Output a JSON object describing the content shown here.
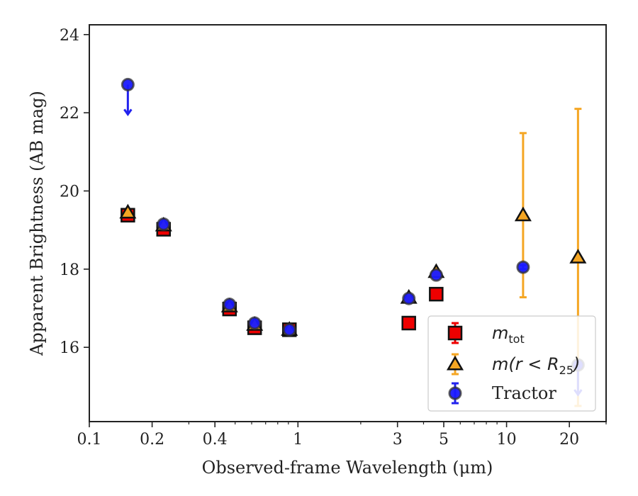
{
  "chart_data": {
    "type": "scatter",
    "xlabel": "Observed-frame Wavelength (μm)",
    "ylabel": "Apparent Brightness (AB mag)",
    "xscale": "log",
    "xlim": [
      0.1,
      30
    ],
    "ylim": [
      24.25,
      14.1
    ],
    "y_inverted": true,
    "xticks": [
      {
        "value": 0.1,
        "label": "0.1"
      },
      {
        "value": 0.2,
        "label": "0.2"
      },
      {
        "value": 0.4,
        "label": "0.4"
      },
      {
        "value": 1,
        "label": "1"
      },
      {
        "value": 3,
        "label": "3"
      },
      {
        "value": 5,
        "label": "5"
      },
      {
        "value": 10,
        "label": "10"
      },
      {
        "value": 20,
        "label": "20"
      }
    ],
    "yticks": [
      {
        "value": 16,
        "label": "16"
      },
      {
        "value": 18,
        "label": "18"
      },
      {
        "value": 20,
        "label": "20"
      },
      {
        "value": 22,
        "label": "22"
      },
      {
        "value": 24,
        "label": "24"
      }
    ],
    "grid": false,
    "legend_position": "lower-right",
    "series": [
      {
        "name": "m_tot",
        "legend_label": {
          "base": "m",
          "sub": "tot"
        },
        "marker": "square",
        "color": "#ee0000",
        "edgecolor": "#111111",
        "errcolor": "#ee0000",
        "points": [
          {
            "x": 0.153,
            "y": 19.38,
            "err": 0.12
          },
          {
            "x": 0.227,
            "y": 19.02,
            "err": 0.1
          },
          {
            "x": 0.47,
            "y": 16.98,
            "err": 0.06
          },
          {
            "x": 0.62,
            "y": 16.5,
            "err": 0.06
          },
          {
            "x": 0.91,
            "y": 16.45,
            "err": 0.05
          },
          {
            "x": 3.4,
            "y": 16.62,
            "err": 0.05
          },
          {
            "x": 4.6,
            "y": 17.36,
            "err": 0.05
          }
        ]
      },
      {
        "name": "m(r < R25)",
        "legend_label": {
          "base": "m(r < R",
          "sub": "25",
          "tail": ")"
        },
        "marker": "triangle",
        "color": "#f5a623",
        "edgecolor": "#111111",
        "errcolor": "#f5a623",
        "points": [
          {
            "x": 0.153,
            "y": 19.45,
            "err": 0.05
          },
          {
            "x": 0.227,
            "y": 19.12,
            "err": 0.05
          },
          {
            "x": 0.47,
            "y": 17.05,
            "err": 0.05
          },
          {
            "x": 0.62,
            "y": 16.58,
            "err": 0.05
          },
          {
            "x": 0.91,
            "y": 16.45,
            "err": 0.05
          },
          {
            "x": 3.4,
            "y": 17.27,
            "err": 0.05
          },
          {
            "x": 4.6,
            "y": 17.93,
            "err": 0.05
          },
          {
            "x": 12.0,
            "y": 19.38,
            "errlo": 2.1,
            "errhi": 2.1
          },
          {
            "x": 22.0,
            "y": 18.3,
            "errlo": 3.8,
            "errhi": 3.8
          }
        ]
      },
      {
        "name": "Tractor",
        "legend_label": {
          "base": "Tractor"
        },
        "marker": "circle",
        "color": "#1a1aff",
        "edgecolor": "#333333",
        "errcolor": "#2222ee",
        "points": [
          {
            "x": 0.153,
            "y": 22.72,
            "upper_limit": true
          },
          {
            "x": 0.227,
            "y": 19.15,
            "err": 0.05
          },
          {
            "x": 0.47,
            "y": 17.1,
            "err": 0.05
          },
          {
            "x": 0.62,
            "y": 16.62,
            "err": 0.05
          },
          {
            "x": 0.91,
            "y": 16.45,
            "err": 0.05
          },
          {
            "x": 3.4,
            "y": 17.25,
            "err": 0.05
          },
          {
            "x": 4.6,
            "y": 17.85,
            "err": 0.05
          },
          {
            "x": 12.0,
            "y": 18.05,
            "err": 0.05
          },
          {
            "x": 22.0,
            "y": 15.55,
            "upper_limit": true
          }
        ]
      }
    ]
  }
}
